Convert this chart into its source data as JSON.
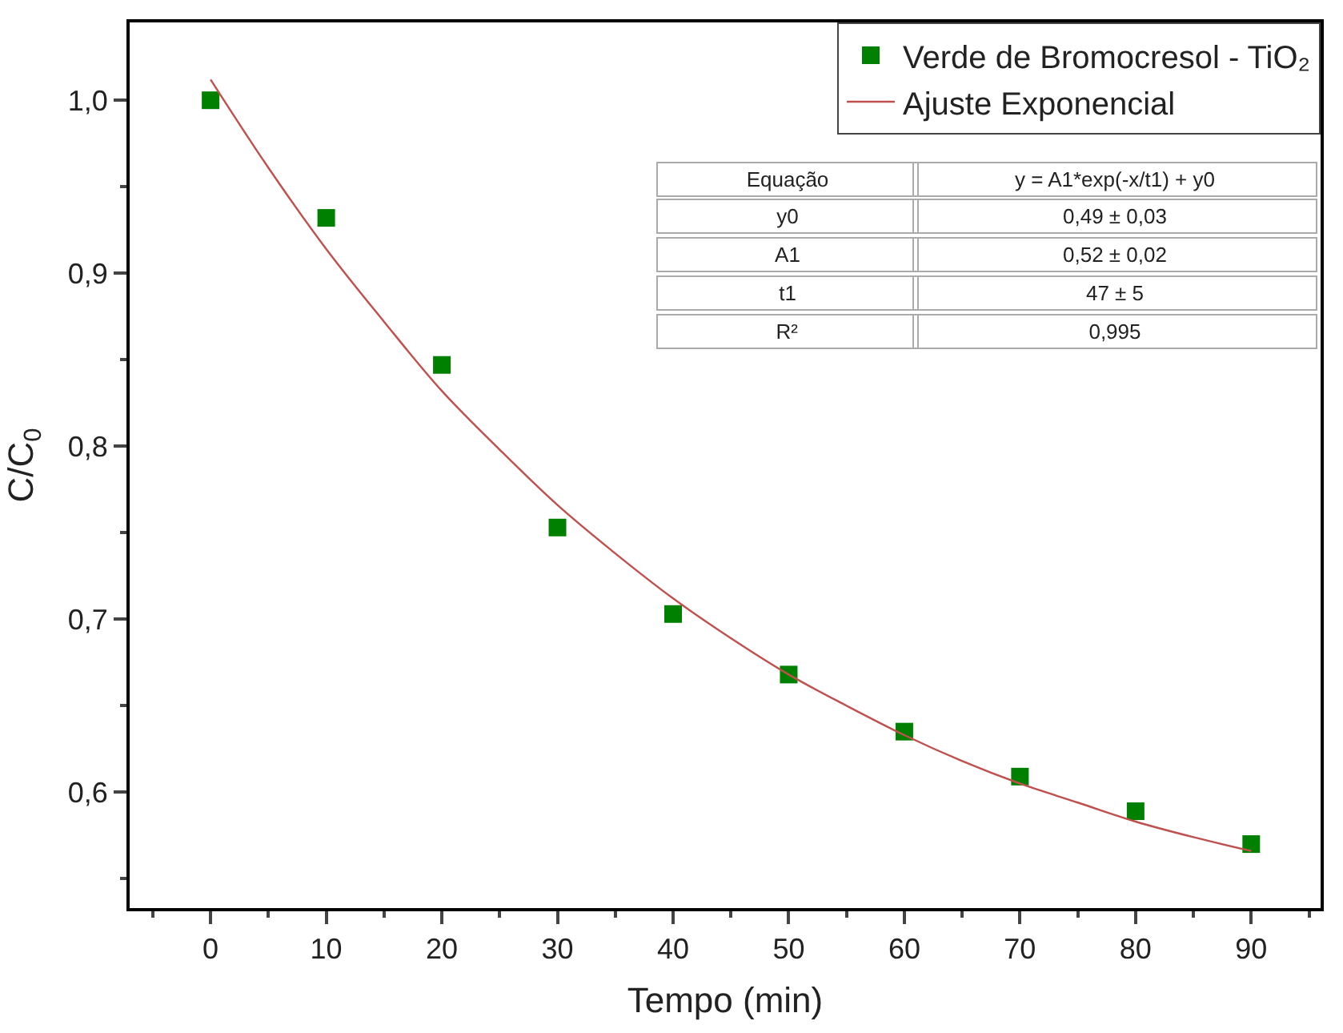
{
  "chart_data": {
    "type": "scatter",
    "xlabel": "Tempo (min)",
    "ylabel": "C/C$_{0}$",
    "xlim": [
      -7,
      96
    ],
    "ylim": [
      0.533,
      1.045
    ],
    "xticks": [
      0,
      10,
      20,
      30,
      40,
      50,
      60,
      70,
      80,
      90
    ],
    "yticks": [
      {
        "value": 0.6,
        "label": "0,6"
      },
      {
        "value": 0.7,
        "label": "0,7"
      },
      {
        "value": 0.8,
        "label": "0,8"
      },
      {
        "value": 0.9,
        "label": "0,9"
      },
      {
        "value": 1.0,
        "label": "1,0"
      }
    ],
    "legend": "top right",
    "marker": "square",
    "series": [
      {
        "name": "Verde de Bromocresol - TiO₂",
        "color": "#008000",
        "x": [
          0,
          10,
          20,
          30,
          40,
          50,
          60,
          70,
          80,
          90
        ],
        "values": [
          1.0,
          0.932,
          0.847,
          0.753,
          0.703,
          0.668,
          0.635,
          0.609,
          0.589,
          0.57
        ]
      },
      {
        "name": "Ajuste Exponencial",
        "type": "line",
        "marker": "none",
        "color": "#c0504d",
        "x": [
          0,
          5,
          10,
          15,
          20,
          25,
          30,
          35,
          40,
          45,
          50,
          55,
          60,
          65,
          70,
          75,
          80,
          85,
          90
        ],
        "values": [
          1.012,
          0.961,
          0.914,
          0.872,
          0.832,
          0.798,
          0.766,
          0.738,
          0.712,
          0.689,
          0.668,
          0.65,
          0.633,
          0.618,
          0.605,
          0.594,
          0.583,
          0.574,
          0.566
        ]
      }
    ],
    "annotations": [
      "Equação",
      "y = A1*exp(-x/t1) + y0",
      "y0",
      "0,49 ± 0,03",
      "A1",
      "0,52 ± 0,02",
      "t1",
      "47 ± 5",
      "R²",
      "0,995"
    ]
  }
}
